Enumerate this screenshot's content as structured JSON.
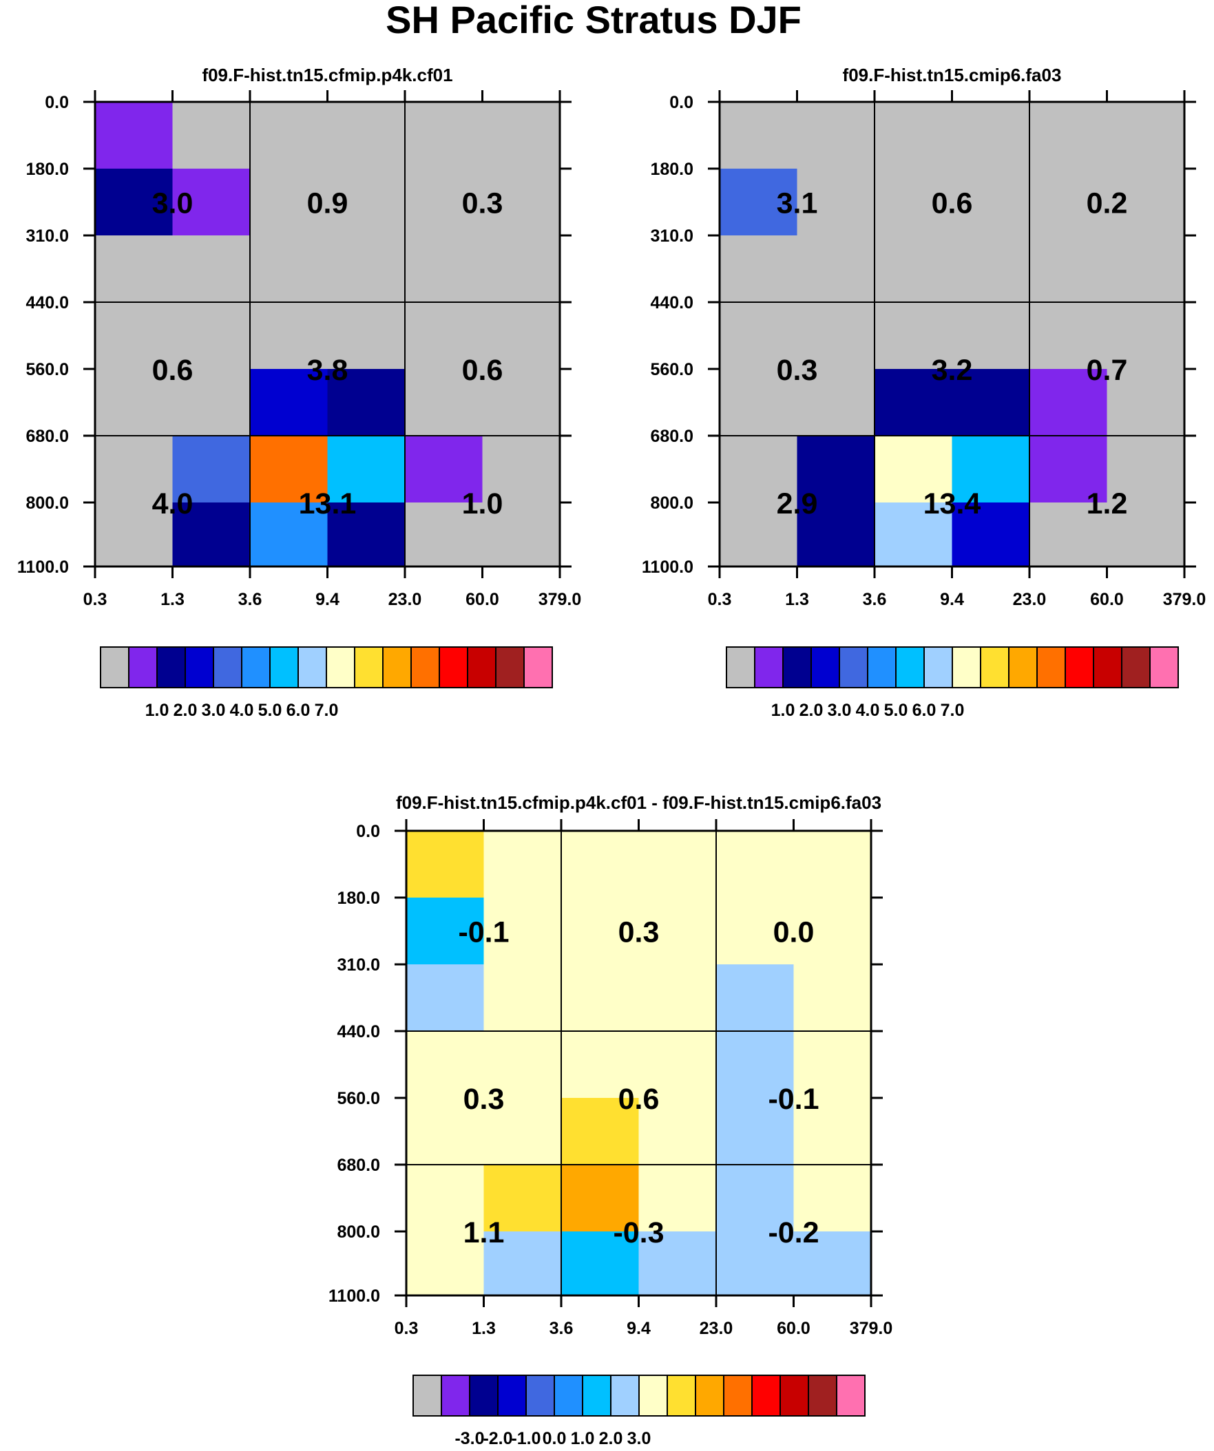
{
  "title": "SH Pacific Stratus DJF",
  "colors": {
    "background": "#ffffff",
    "frame": "#000000",
    "palette": [
      "#c0c0c0",
      "#8026ec",
      "#000090",
      "#0000d0",
      "#4068e0",
      "#2090ff",
      "#00c0ff",
      "#a0d0ff",
      "#ffffc8",
      "#ffe030",
      "#ffa800",
      "#ff7000",
      "#ff0000",
      "#c80000",
      "#a02020",
      "#ff70b0"
    ]
  },
  "chart_data": [
    {
      "type": "heatmap",
      "title": "f09.F-hist.tn15.cfmip.p4k.cf01",
      "xlabel": "",
      "ylabel": "",
      "x_ticks": [
        "0.3",
        "1.3",
        "3.6",
        "9.4",
        "23.0",
        "60.0",
        "379.0"
      ],
      "y_ticks": [
        "0.0",
        "180.0",
        "310.0",
        "440.0",
        "560.0",
        "680.0",
        "800.0",
        "1100.0"
      ],
      "cell_color_index": [
        [
          1,
          0,
          0,
          0,
          0,
          0
        ],
        [
          2,
          1,
          0,
          0,
          0,
          0
        ],
        [
          0,
          0,
          0,
          0,
          0,
          0
        ],
        [
          0,
          0,
          0,
          0,
          0,
          0
        ],
        [
          0,
          0,
          3,
          2,
          0,
          0
        ],
        [
          0,
          4,
          11,
          6,
          1,
          0
        ],
        [
          0,
          2,
          5,
          2,
          0,
          0
        ]
      ],
      "block_labels": [
        [
          "3.0",
          "0.9",
          "0.3"
        ],
        [
          "0.6",
          "3.8",
          "0.6"
        ],
        [
          "4.0",
          "13.1",
          "1.0"
        ]
      ],
      "colorbar": {
        "labels": [
          "1.0",
          "2.0",
          "3.0",
          "4.0",
          "5.0",
          "6.0",
          "7.0"
        ],
        "boxes": 16
      }
    },
    {
      "type": "heatmap",
      "title": "f09.F-hist.tn15.cmip6.fa03",
      "xlabel": "",
      "ylabel": "",
      "x_ticks": [
        "0.3",
        "1.3",
        "3.6",
        "9.4",
        "23.0",
        "60.0",
        "379.0"
      ],
      "y_ticks": [
        "0.0",
        "180.0",
        "310.0",
        "440.0",
        "560.0",
        "680.0",
        "800.0",
        "1100.0"
      ],
      "cell_color_index": [
        [
          0,
          0,
          0,
          0,
          0,
          0
        ],
        [
          4,
          0,
          0,
          0,
          0,
          0
        ],
        [
          0,
          0,
          0,
          0,
          0,
          0
        ],
        [
          0,
          0,
          0,
          0,
          0,
          0
        ],
        [
          0,
          0,
          2,
          2,
          1,
          0
        ],
        [
          0,
          2,
          8,
          6,
          1,
          0
        ],
        [
          0,
          2,
          7,
          3,
          0,
          0
        ]
      ],
      "block_labels": [
        [
          "3.1",
          "0.6",
          "0.2"
        ],
        [
          "0.3",
          "3.2",
          "0.7"
        ],
        [
          "2.9",
          "13.4",
          "1.2"
        ]
      ],
      "colorbar": {
        "labels": [
          "1.0",
          "2.0",
          "3.0",
          "4.0",
          "5.0",
          "6.0",
          "7.0"
        ],
        "boxes": 16
      }
    },
    {
      "type": "heatmap",
      "title": "f09.F-hist.tn15.cfmip.p4k.cf01 - f09.F-hist.tn15.cmip6.fa03",
      "xlabel": "",
      "ylabel": "",
      "x_ticks": [
        "0.3",
        "1.3",
        "3.6",
        "9.4",
        "23.0",
        "60.0",
        "379.0"
      ],
      "y_ticks": [
        "0.0",
        "180.0",
        "310.0",
        "440.0",
        "560.0",
        "680.0",
        "800.0",
        "1100.0"
      ],
      "cell_color_index": [
        [
          9,
          8,
          8,
          8,
          8,
          8
        ],
        [
          6,
          8,
          8,
          8,
          8,
          8
        ],
        [
          7,
          8,
          8,
          8,
          7,
          8
        ],
        [
          8,
          8,
          8,
          8,
          7,
          8
        ],
        [
          8,
          8,
          9,
          8,
          7,
          8
        ],
        [
          8,
          9,
          10,
          8,
          7,
          8
        ],
        [
          8,
          7,
          6,
          7,
          7,
          7
        ]
      ],
      "block_labels": [
        [
          "-0.1",
          "0.3",
          "0.0"
        ],
        [
          "0.3",
          "0.6",
          "-0.1"
        ],
        [
          "1.1",
          "-0.3",
          "-0.2"
        ]
      ],
      "colorbar": {
        "labels": [
          "-3.0",
          "-2.0",
          "-1.0",
          "0.0",
          "1.0",
          "2.0",
          "3.0"
        ],
        "boxes": 16
      }
    }
  ]
}
